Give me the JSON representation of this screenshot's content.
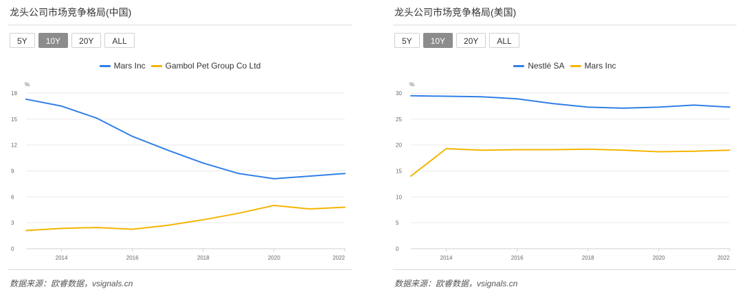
{
  "ranges": [
    "5Y",
    "10Y",
    "20Y",
    "ALL"
  ],
  "active_range": "10Y",
  "charts": [
    {
      "title": "龙头公司市场竞争格局(中国)",
      "source": "数据来源：欧睿数据，vsignals.cn",
      "chart_data": {
        "type": "line",
        "unit": "%",
        "x": [
          2013,
          2014,
          2015,
          2016,
          2017,
          2018,
          2019,
          2020,
          2021,
          2022
        ],
        "x_ticks": [
          2014,
          2016,
          2018,
          2020,
          2022
        ],
        "y_ticks": [
          0,
          3,
          6,
          9,
          12,
          15,
          18
        ],
        "ylim": [
          0,
          18
        ],
        "grid": true,
        "legend_position": "top-center",
        "series": [
          {
            "name": "Mars Inc",
            "color": "#2f7ee6",
            "values": [
              17.3,
              16.5,
              15.1,
              13.0,
              11.4,
              9.9,
              8.7,
              8.1,
              8.4,
              8.7
            ]
          },
          {
            "name": "Gambol Pet Group Co Ltd",
            "color": "#f5b400",
            "values": [
              2.1,
              2.35,
              2.45,
              2.25,
              2.7,
              3.35,
              4.1,
              5.0,
              4.6,
              4.8
            ]
          }
        ]
      }
    },
    {
      "title": "龙头公司市场竞争格局(美国)",
      "source": "数据来源：欧睿数据，vsignals.cn",
      "chart_data": {
        "type": "line",
        "unit": "%",
        "x": [
          2013,
          2014,
          2015,
          2016,
          2017,
          2018,
          2019,
          2020,
          2021,
          2022
        ],
        "x_ticks": [
          2014,
          2016,
          2018,
          2020,
          2022
        ],
        "y_ticks": [
          0,
          5,
          10,
          15,
          20,
          25,
          30
        ],
        "ylim": [
          0,
          30
        ],
        "grid": true,
        "legend_position": "top-center",
        "series": [
          {
            "name": "Nestlé SA",
            "color": "#2f7ee6",
            "values": [
              29.5,
              29.4,
              29.3,
              28.9,
              28.0,
              27.3,
              27.1,
              27.3,
              27.7,
              27.3
            ]
          },
          {
            "name": "Mars Inc",
            "color": "#f5b400",
            "values": [
              14.0,
              19.3,
              19.0,
              19.1,
              19.1,
              19.2,
              19.0,
              18.7,
              18.8,
              19.0
            ]
          }
        ]
      }
    }
  ]
}
